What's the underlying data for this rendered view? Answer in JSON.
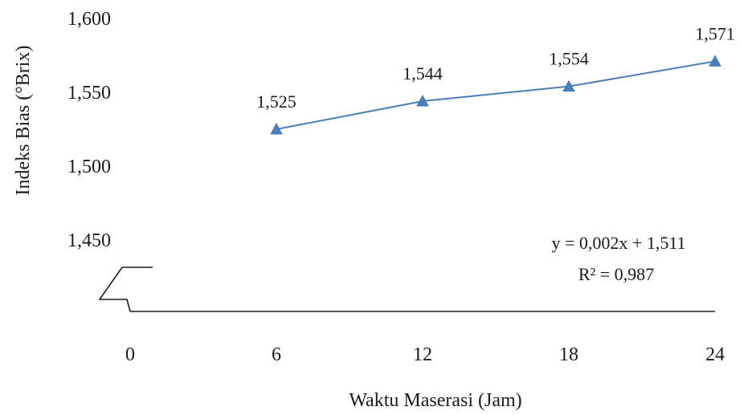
{
  "chart_data": {
    "type": "line",
    "x": [
      6,
      12,
      18,
      24
    ],
    "series": [
      {
        "values": [
          1.525,
          1.544,
          1.554,
          1.571
        ],
        "color": "#4a7ebb",
        "marker": "triangle"
      }
    ],
    "data_labels": [
      "1,525",
      "1,544",
      "1,554",
      "1,571"
    ],
    "xlabel": "Waktu Maserasi (Jam)",
    "ylabel": "Indeks Bias (°Brix)",
    "x_ticks": [
      0,
      6,
      12,
      18,
      24
    ],
    "x_tick_labels": [
      "0",
      "6",
      "12",
      "18",
      "24"
    ],
    "y_ticks": [
      1.45,
      1.5,
      1.55,
      1.6
    ],
    "y_tick_labels": [
      "1,450",
      "1,500",
      "1,550",
      "1,600"
    ],
    "xlim": [
      0,
      24
    ],
    "ylim": [
      1.4,
      1.6
    ],
    "axis_break": true,
    "grid": false,
    "trendline": {
      "equation": "y = 0,002x + 1,511",
      "r_squared": "R² = 0,987"
    }
  }
}
